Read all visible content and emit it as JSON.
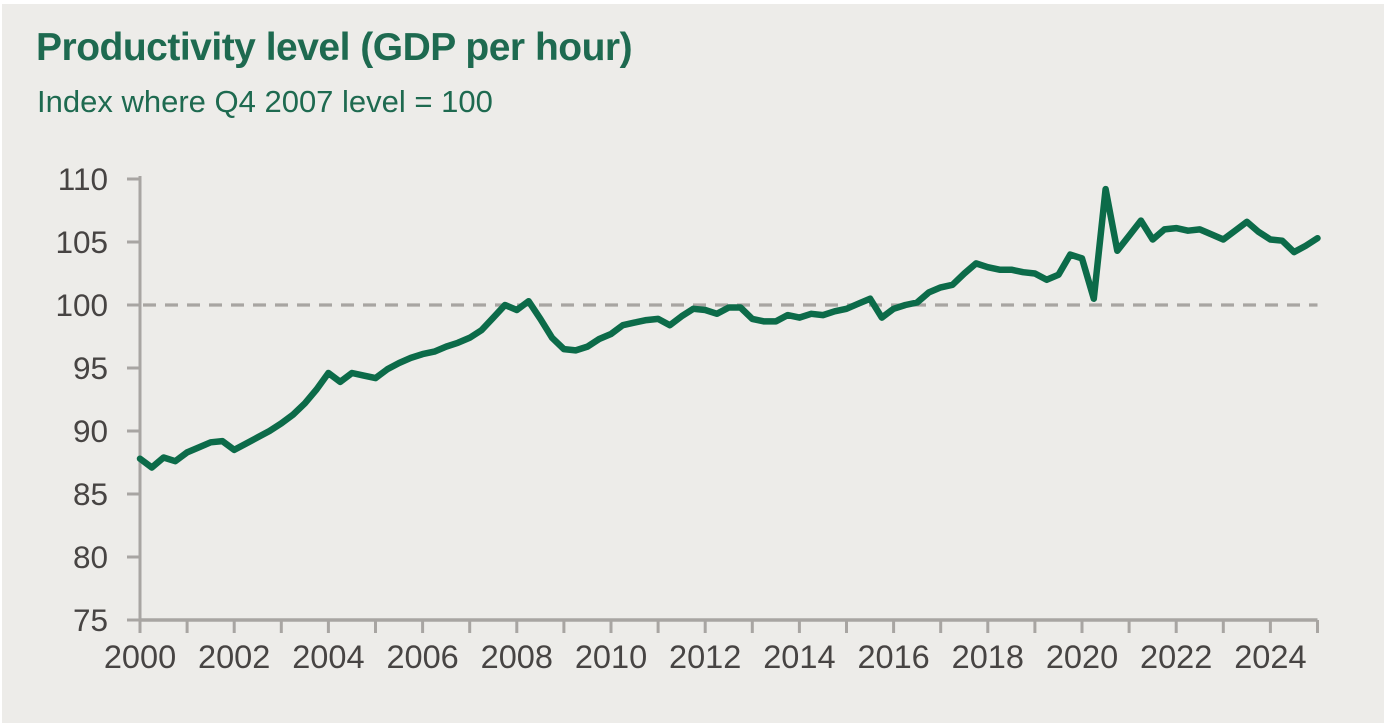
{
  "page": {
    "background_color": "#ffffff",
    "panel_color": "#edece9"
  },
  "header": {
    "title": "Productivity level (GDP per hour)",
    "subtitle": "Index where Q4 2007 level = 100",
    "title_color": "#1e6a50"
  },
  "chart_data": {
    "type": "line",
    "title": "Productivity level (GDP per hour)",
    "subtitle": "Index where Q4 2007 level = 100",
    "x_unit": "quarterly",
    "x_start": "2000 Q1",
    "x_end": "2025 Q1",
    "xlim": [
      2000,
      2025
    ],
    "ylim": [
      75,
      110
    ],
    "grid": false,
    "legend_position": "none",
    "y_tick_labels": [
      "75",
      "80",
      "85",
      "90",
      "95",
      "100",
      "105",
      "110"
    ],
    "y_ticks": [
      75,
      80,
      85,
      90,
      95,
      100,
      105,
      110
    ],
    "x_tick_years": [
      2000,
      2001,
      2002,
      2003,
      2004,
      2005,
      2006,
      2007,
      2008,
      2009,
      2010,
      2011,
      2012,
      2013,
      2014,
      2015,
      2016,
      2017,
      2018,
      2019,
      2020,
      2021,
      2022,
      2023,
      2024,
      2025
    ],
    "x_label_years": [
      2000,
      2002,
      2004,
      2006,
      2008,
      2010,
      2012,
      2014,
      2016,
      2018,
      2020,
      2022,
      2024
    ],
    "reference_line": {
      "value": 100,
      "style": "dashed",
      "color": "#a8a5a2"
    },
    "axis_color": "#a8a5a2",
    "tick_label_color": "#474443",
    "series": [
      {
        "name": "GDP per hour",
        "color": "#0c6b49",
        "values": [
          87.8,
          87.1,
          87.9,
          87.6,
          88.3,
          88.7,
          89.1,
          89.2,
          88.5,
          89.0,
          89.5,
          90.0,
          90.6,
          91.3,
          92.2,
          93.3,
          94.6,
          93.9,
          94.6,
          94.4,
          94.2,
          94.9,
          95.4,
          95.8,
          96.1,
          96.3,
          96.7,
          97.0,
          97.4,
          98.0,
          99.0,
          100.0,
          99.6,
          100.3,
          98.9,
          97.4,
          96.5,
          96.4,
          96.7,
          97.3,
          97.7,
          98.4,
          98.6,
          98.8,
          98.9,
          98.4,
          99.1,
          99.7,
          99.6,
          99.3,
          99.8,
          99.8,
          98.9,
          98.7,
          98.7,
          99.2,
          99.0,
          99.3,
          99.2,
          99.5,
          99.7,
          100.1,
          100.5,
          99.0,
          99.7,
          100.0,
          100.2,
          101.0,
          101.4,
          101.6,
          102.5,
          103.3,
          103.0,
          102.8,
          102.8,
          102.6,
          102.5,
          102.0,
          102.4,
          104.0,
          103.7,
          100.5,
          109.2,
          104.3,
          105.5,
          106.7,
          105.2,
          106.0,
          106.1,
          105.9,
          106.0,
          105.6,
          105.2,
          105.9,
          106.6,
          105.8,
          105.2,
          105.1,
          104.2,
          104.7,
          105.3
        ]
      }
    ]
  }
}
